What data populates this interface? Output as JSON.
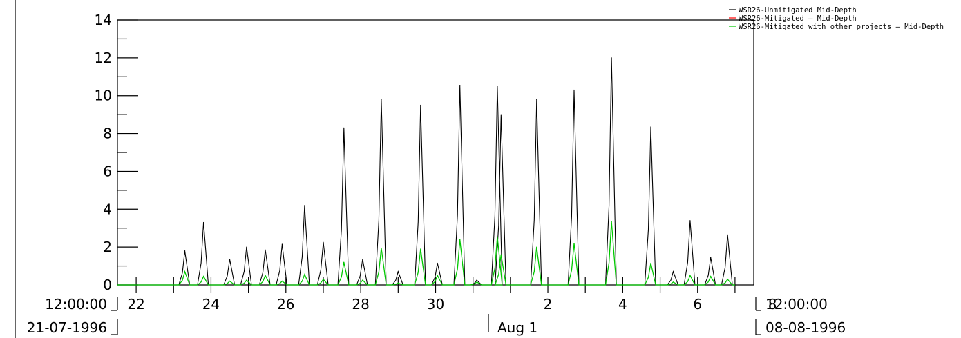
{
  "chart_data": {
    "type": "line",
    "title": "",
    "xlabel": "",
    "ylabel": "",
    "ylim": [
      0,
      14
    ],
    "y_major_ticks": [
      0,
      2,
      4,
      6,
      8,
      10,
      12,
      14
    ],
    "y_tick_labels": [
      "0",
      "2",
      "4",
      "6",
      "8",
      "10",
      "12",
      "14"
    ],
    "x_range_days": [
      "1996-07-21T12:00",
      "1996-08-08T12:00"
    ],
    "x_tick_labels": [
      "22",
      "24",
      "26",
      "28",
      "30",
      "2",
      "4",
      "6",
      "8"
    ],
    "x_month_label": "Aug 1",
    "x_start_label": {
      "time": "12:00:00",
      "date": "21-07-1996"
    },
    "x_end_label": {
      "time": "12:00:00",
      "date": "08-08-1996"
    },
    "legend_position": "top-right",
    "series": [
      {
        "name": "WSR26-Unmitigated   Mid-Depth",
        "color": "#000000",
        "peaks": [
          {
            "day": 23.3,
            "value": 1.8
          },
          {
            "day": 23.8,
            "value": 3.3
          },
          {
            "day": 24.5,
            "value": 1.35
          },
          {
            "day": 24.95,
            "value": 2.0
          },
          {
            "day": 25.45,
            "value": 1.85
          },
          {
            "day": 25.9,
            "value": 2.15
          },
          {
            "day": 26.5,
            "value": 4.2
          },
          {
            "day": 27.0,
            "value": 2.25
          },
          {
            "day": 27.55,
            "value": 8.3
          },
          {
            "day": 28.05,
            "value": 1.35
          },
          {
            "day": 28.55,
            "value": 9.8
          },
          {
            "day": 29.0,
            "value": 0.7
          },
          {
            "day": 29.6,
            "value": 9.5
          },
          {
            "day": 30.05,
            "value": 1.15
          },
          {
            "day": 30.65,
            "value": 10.55
          },
          {
            "day": 31.1,
            "value": 0.25
          },
          {
            "day": 31.65,
            "value": 10.5
          },
          {
            "day": 31.75,
            "value": 9.0
          },
          {
            "day": 32.7,
            "value": 9.8
          },
          {
            "day": 33.7,
            "value": 10.3
          },
          {
            "day": 34.7,
            "value": 12.0
          },
          {
            "day": 35.75,
            "value": 8.35
          },
          {
            "day": 36.35,
            "value": 0.7
          },
          {
            "day": 36.8,
            "value": 3.4
          },
          {
            "day": 37.35,
            "value": 1.45
          },
          {
            "day": 37.8,
            "value": 2.65
          }
        ]
      },
      {
        "name": "WSR26-Mitigated – Mid-Depth",
        "color": "#ff0000",
        "peaks": []
      },
      {
        "name": "WSR26-Mitigated with other projects – Mid-Depth",
        "color": "#00c800",
        "peaks": [
          {
            "day": 23.3,
            "value": 0.7
          },
          {
            "day": 23.8,
            "value": 0.45
          },
          {
            "day": 24.5,
            "value": 0.2
          },
          {
            "day": 24.95,
            "value": 0.25
          },
          {
            "day": 25.45,
            "value": 0.5
          },
          {
            "day": 25.9,
            "value": 0.2
          },
          {
            "day": 26.5,
            "value": 0.55
          },
          {
            "day": 27.0,
            "value": 0.3
          },
          {
            "day": 27.55,
            "value": 1.2
          },
          {
            "day": 28.05,
            "value": 0.25
          },
          {
            "day": 28.55,
            "value": 1.95
          },
          {
            "day": 29.0,
            "value": 0.1
          },
          {
            "day": 29.6,
            "value": 1.9
          },
          {
            "day": 30.05,
            "value": 0.5
          },
          {
            "day": 30.65,
            "value": 2.4
          },
          {
            "day": 31.1,
            "value": 0.15
          },
          {
            "day": 31.65,
            "value": 2.55
          },
          {
            "day": 31.75,
            "value": 1.6
          },
          {
            "day": 32.7,
            "value": 2.0
          },
          {
            "day": 33.7,
            "value": 2.2
          },
          {
            "day": 34.7,
            "value": 3.35
          },
          {
            "day": 35.75,
            "value": 1.15
          },
          {
            "day": 36.35,
            "value": 0.15
          },
          {
            "day": 36.8,
            "value": 0.5
          },
          {
            "day": 37.35,
            "value": 0.45
          },
          {
            "day": 37.8,
            "value": 0.3
          }
        ]
      }
    ]
  }
}
